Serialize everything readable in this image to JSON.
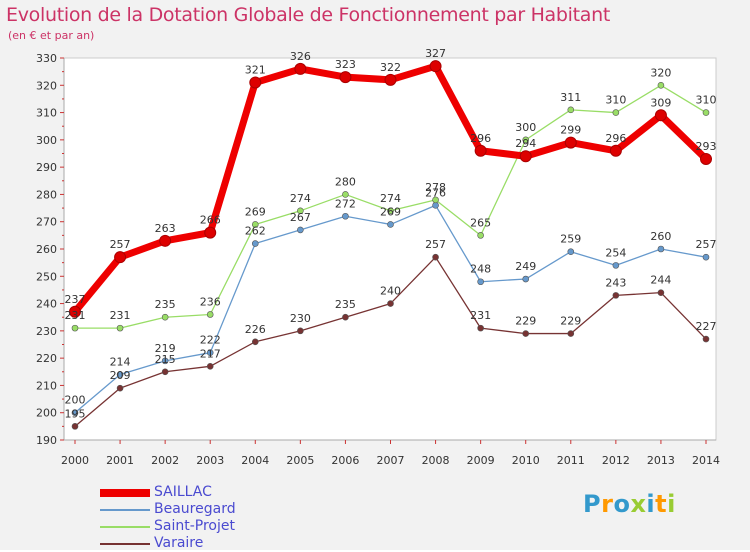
{
  "title": "Evolution de la Dotation Globale de Fonctionnement par Habitant",
  "subtitle": "(en € et par an)",
  "logo_text": "Proxiti",
  "chart_data": {
    "type": "line",
    "x": [
      "2000",
      "2001",
      "2002",
      "2003",
      "2004",
      "2005",
      "2006",
      "2007",
      "2008",
      "2009",
      "2010",
      "2011",
      "2012",
      "2013",
      "2014"
    ],
    "ylim": [
      190,
      330
    ],
    "yticks": [
      190,
      200,
      210,
      220,
      230,
      240,
      250,
      260,
      270,
      280,
      290,
      300,
      310,
      320,
      330
    ],
    "grid": false,
    "legend_position": "bottom-left",
    "series": [
      {
        "name": "SAILLAC",
        "color": "#ee0000",
        "values": [
          237,
          257,
          263,
          266,
          321,
          326,
          323,
          322,
          327,
          296,
          294,
          299,
          296,
          309,
          293
        ]
      },
      {
        "name": "Beauregard",
        "color": "#6699cc",
        "values": [
          200,
          214,
          219,
          222,
          262,
          267,
          272,
          269,
          276,
          248,
          249,
          259,
          254,
          260,
          257
        ]
      },
      {
        "name": "Saint-Projet",
        "color": "#99dd66",
        "values": [
          231,
          231,
          235,
          236,
          269,
          274,
          280,
          274,
          278,
          265,
          300,
          311,
          310,
          320,
          310
        ]
      },
      {
        "name": "Varaire",
        "color": "#773333",
        "values": [
          195,
          209,
          215,
          217,
          226,
          230,
          235,
          240,
          257,
          231,
          229,
          229,
          243,
          244,
          227
        ]
      }
    ]
  }
}
